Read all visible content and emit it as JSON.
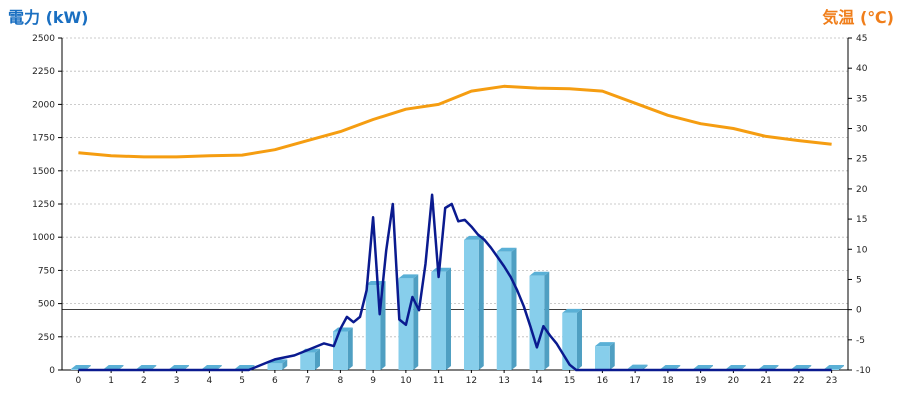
{
  "left_title": "電力 (kW)",
  "right_title": "気温 (℃)",
  "chart_data": {
    "type": "bar",
    "categories": [
      "0",
      "1",
      "2",
      "3",
      "4",
      "5",
      "6",
      "7",
      "8",
      "9",
      "10",
      "11",
      "12",
      "13",
      "14",
      "15",
      "16",
      "17",
      "18",
      "19",
      "20",
      "21",
      "22",
      "23"
    ],
    "y_left_ticks": [
      "0",
      "250",
      "500",
      "750",
      "1000",
      "1250",
      "1500",
      "1750",
      "2000",
      "2250",
      "2500"
    ],
    "y_right_ticks": [
      "-10",
      "-5",
      "0",
      "5",
      "10",
      "15",
      "20",
      "25",
      "30",
      "35",
      "40",
      "45"
    ],
    "ylim_left": [
      0,
      2500
    ],
    "ylim_right": [
      -10,
      45
    ],
    "grid": true,
    "bars": {
      "color": "#87ceeb",
      "values": [
        0,
        0,
        0,
        0,
        0,
        0,
        50,
        130,
        290,
        640,
        690,
        740,
        980,
        890,
        710,
        430,
        180,
        10,
        0,
        0,
        0,
        0,
        0,
        0
      ]
    },
    "power_line": {
      "color": "#0a1a8f",
      "x": [
        0,
        1,
        2,
        3,
        4,
        5,
        5.2,
        5.5,
        5.8,
        6,
        6.3,
        6.6,
        6.9,
        7.2,
        7.5,
        7.8,
        8,
        8.2,
        8.4,
        8.6,
        8.8,
        9,
        9.2,
        9.4,
        9.6,
        9.8,
        10,
        10.2,
        10.4,
        10.6,
        10.8,
        11,
        11.2,
        11.4,
        11.6,
        11.8,
        12,
        12.2,
        12.4,
        12.6,
        12.8,
        13,
        13.2,
        13.4,
        13.6,
        13.8,
        14,
        14.2,
        14.4,
        14.6,
        14.8,
        15,
        15.2,
        15.4,
        15.6,
        15.8,
        16,
        16.2,
        16.4,
        16.6,
        16.8,
        17,
        17.2,
        18,
        19,
        20,
        21,
        22,
        23
      ],
      "y": [
        0,
        0,
        0,
        0,
        0,
        0,
        0,
        30,
        60,
        80,
        95,
        110,
        140,
        170,
        200,
        180,
        310,
        400,
        360,
        400,
        600,
        1150,
        420,
        900,
        1250,
        380,
        340,
        550,
        450,
        800,
        1320,
        700,
        1220,
        1250,
        1120,
        1130,
        1080,
        1020,
        980,
        920,
        850,
        780,
        700,
        600,
        480,
        330,
        170,
        330,
        260,
        200,
        120,
        40,
        0,
        0,
        0,
        0,
        0,
        0,
        0,
        0,
        0,
        0,
        0,
        0,
        0,
        0,
        0,
        0,
        0
      ]
    },
    "temp_line": {
      "color": "#f59d11",
      "x": [
        0,
        1,
        2,
        3,
        4,
        5,
        6,
        7,
        8,
        9,
        10,
        11,
        12,
        13,
        14,
        15,
        16,
        17,
        18,
        19,
        20,
        21,
        22,
        23
      ],
      "y": [
        26,
        25.5,
        25.3,
        25.3,
        25.5,
        25.6,
        26.5,
        28,
        29.5,
        31.5,
        33.2,
        34,
        36.2,
        37,
        36.7,
        36.6,
        36.2,
        34.2,
        32.2,
        30.8,
        30,
        28.7,
        28,
        27.4
      ]
    },
    "zero_line_right_value": 0
  }
}
